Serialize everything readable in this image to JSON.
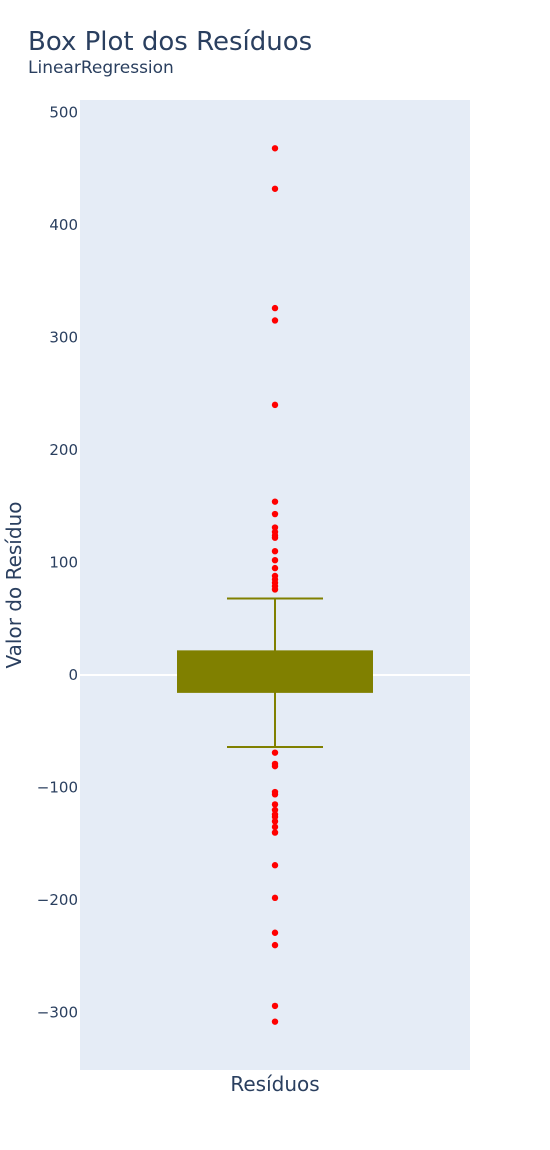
{
  "chart_data": {
    "type": "box",
    "title": "Box Plot dos Resíduos",
    "subtitle": "LinearRegression",
    "xlabel": "Resíduos",
    "ylabel": "Valor do Resíduo",
    "category": "Resíduos",
    "ylim": [
      -350,
      510
    ],
    "yticks": [
      500,
      400,
      300,
      200,
      100,
      0,
      -100,
      -200,
      -300
    ],
    "ytick_labels": [
      "500",
      "400",
      "300",
      "200",
      "100",
      "0",
      "−100",
      "−200",
      "−300"
    ],
    "box": {
      "q1": -15,
      "q3": 21,
      "median": 0,
      "whisker_low": -64,
      "whisker_high": 68
    },
    "outliers": [
      468,
      432,
      326,
      315,
      240,
      154,
      143,
      131,
      127,
      124,
      122,
      110,
      102,
      95,
      88,
      85,
      82,
      79,
      76,
      -69,
      -79,
      -81,
      -104,
      -106,
      -115,
      -120,
      -124,
      -126,
      -130,
      -135,
      -140,
      -169,
      -198,
      -229,
      -240,
      -294,
      -308
    ],
    "colors": {
      "box": "#808000",
      "outlier": "#ff0000",
      "plot_bg": "#e5ecf6",
      "zero_line": "#ffffff",
      "text": "#2a3f5f"
    },
    "grid": false,
    "legend": "none"
  }
}
